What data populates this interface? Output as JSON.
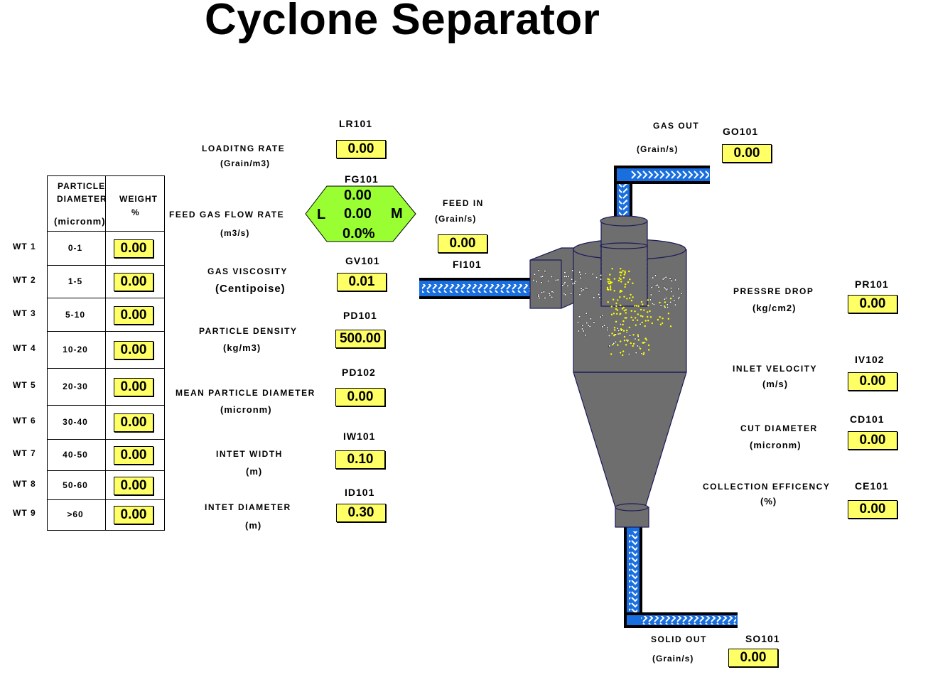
{
  "title": "Cyclone Separator",
  "table": {
    "header_diameter": [
      "PARTICLE",
      "DIAMETER",
      "(micronm)"
    ],
    "header_weight": [
      "WEIGHT",
      "%"
    ],
    "rows": [
      {
        "label": "WT 1",
        "range": "0-1",
        "value": "0.00"
      },
      {
        "label": "WT 2",
        "range": "1-5",
        "value": "0.00"
      },
      {
        "label": "WT 3",
        "range": "5-10",
        "value": "0.00"
      },
      {
        "label": "WT 4",
        "range": "10-20",
        "value": "0.00"
      },
      {
        "label": "WT 5",
        "range": "20-30",
        "value": "0.00"
      },
      {
        "label": "WT 6",
        "range": "30-40",
        "value": "0.00"
      },
      {
        "label": "WT 7",
        "range": "40-50",
        "value": "0.00"
      },
      {
        "label": "WT 8",
        "range": "50-60",
        "value": "0.00"
      },
      {
        "label": "WT 9",
        "range": ">60",
        "value": "0.00"
      }
    ]
  },
  "params": {
    "loading_rate": {
      "label": "LOADITNG RATE",
      "unit": "(Grain/m3)",
      "tag": "LR101",
      "value": "0.00"
    },
    "feed_gas": {
      "label": "FEED GAS FLOW RATE",
      "unit": "(m3/s)",
      "tag": "FG101",
      "value1": "0.00",
      "value2": "0.00",
      "value3": "0.0%",
      "left": "L",
      "right": "M"
    },
    "gas_viscosity": {
      "label": "GAS VISCOSITY",
      "unit": "(Centipoise)",
      "tag": "GV101",
      "value": "0.01"
    },
    "particle_density": {
      "label": "PARTICLE DENSITY",
      "unit": "(kg/m3)",
      "tag": "PD101",
      "value": "500.00"
    },
    "mean_diameter": {
      "label": "MEAN PARTICLE DIAMETER",
      "unit": "(micronm)",
      "tag": "PD102",
      "value": "0.00"
    },
    "inlet_width": {
      "label": "INTET WIDTH",
      "unit": "(m)",
      "tag": "IW101",
      "value": "0.10"
    },
    "inlet_diameter": {
      "label": "INTET DIAMETER",
      "unit": "(m)",
      "tag": "ID101",
      "value": "0.30"
    }
  },
  "feed_in": {
    "label": "FEED IN",
    "unit": "(Grain/s)",
    "value": "0.00",
    "tag": "FI101"
  },
  "gas_out": {
    "label": "GAS OUT",
    "unit": "(Grain/s)",
    "tag": "GO101",
    "value": "0.00"
  },
  "solid_out": {
    "label": "SOLID OUT",
    "unit": "(Grain/s)",
    "tag": "SO101",
    "value": "0.00"
  },
  "outputs": {
    "pressure_drop": {
      "label": "PRESSRE DROP",
      "unit": "(kg/cm2)",
      "tag": "PR101",
      "value": "0.00"
    },
    "inlet_velocity": {
      "label": "INLET VELOCITY",
      "unit": "(m/s)",
      "tag": "IV102",
      "value": "0.00"
    },
    "cut_diameter": {
      "label": "CUT DIAMETER",
      "unit": "(micronm)",
      "tag": "CD101",
      "value": "0.00"
    },
    "collection_efficiency": {
      "label": "COLLECTION EFFICENCY",
      "unit": "(%)",
      "tag": "CE101",
      "value": "0.00"
    }
  },
  "colors": {
    "pipe": "#1a6fe0",
    "vessel": "#6e6e6e",
    "value_box": "#ffff66",
    "hex": "#99ff33",
    "yellow_particle": "#ffff00"
  }
}
